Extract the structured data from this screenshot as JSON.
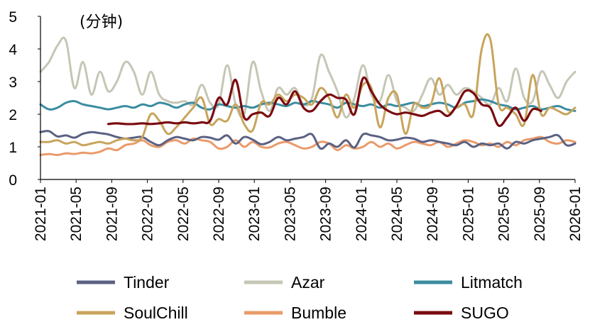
{
  "chart_data": {
    "type": "line",
    "unit_label": "(分钟)",
    "ylim": [
      0,
      5
    ],
    "yticks": [
      "0",
      "1",
      "2",
      "3",
      "4",
      "5"
    ],
    "x_tick_labels": [
      "2021-01",
      "2021-05",
      "2021-09",
      "2022-01",
      "2022-05",
      "2022-09",
      "2023-01",
      "2023-05",
      "2023-09",
      "2024-01",
      "2024-05",
      "2024-09",
      "2025-01",
      "2025-05",
      "2025-09",
      "2026-01"
    ],
    "x_start": "2021-01",
    "x_end": "2026-01",
    "legend_position": "bottom",
    "series": [
      {
        "name": "Tinder",
        "color": "#5b6183",
        "start": 0,
        "values": [
          1.45,
          1.48,
          1.32,
          1.35,
          1.28,
          1.4,
          1.45,
          1.42,
          1.38,
          1.3,
          1.25,
          1.28,
          1.3,
          1.15,
          1.05,
          1.2,
          1.3,
          1.25,
          1.2,
          1.3,
          1.28,
          1.22,
          1.35,
          1.1,
          1.3,
          1.22,
          1.08,
          1.15,
          1.3,
          1.2,
          1.25,
          1.3,
          1.38,
          0.95,
          1.1,
          1.0,
          1.2,
          0.98,
          1.38,
          1.35,
          1.3,
          1.2,
          1.22,
          1.28,
          1.25,
          1.15,
          1.2,
          1.15,
          1.1,
          1.05,
          1.15,
          1.0,
          1.1,
          1.05,
          1.1,
          0.95,
          1.15,
          1.1,
          1.2,
          1.25,
          1.3,
          1.35,
          1.05,
          1.1
        ]
      },
      {
        "name": "Azar",
        "color": "#c5c6b4",
        "start": 0,
        "values": [
          3.3,
          3.6,
          4.1,
          4.25,
          2.8,
          3.6,
          2.6,
          3.3,
          2.7,
          3.0,
          3.6,
          3.3,
          2.6,
          3.3,
          2.6,
          2.4,
          2.35,
          2.4,
          2.3,
          2.9,
          2.35,
          2.3,
          3.5,
          2.3,
          2.0,
          3.6,
          2.7,
          2.1,
          2.8,
          2.6,
          2.8,
          2.3,
          2.5,
          3.8,
          3.3,
          2.7,
          1.9,
          2.5,
          3.5,
          2.6,
          2.4,
          3.2,
          2.4,
          2.2,
          2.1,
          2.6,
          3.1,
          2.6,
          2.9,
          2.6,
          2.8,
          2.7,
          2.5,
          2.3,
          2.8,
          2.4,
          3.4,
          2.5,
          2.4,
          3.3,
          2.9,
          2.5,
          3.0,
          3.3
        ]
      },
      {
        "name": "Litmatch",
        "color": "#3a8ca0",
        "start": 0,
        "values": [
          2.3,
          2.15,
          2.2,
          2.35,
          2.4,
          2.3,
          2.25,
          2.2,
          2.15,
          2.2,
          2.25,
          2.2,
          2.3,
          2.25,
          2.35,
          2.3,
          2.2,
          2.3,
          2.35,
          2.2,
          2.15,
          2.3,
          2.25,
          2.2,
          2.25,
          2.2,
          2.3,
          2.35,
          2.3,
          2.25,
          2.35,
          2.3,
          2.4,
          2.35,
          2.3,
          2.2,
          2.35,
          2.3,
          2.25,
          2.3,
          2.2,
          2.3,
          2.25,
          2.3,
          2.35,
          2.25,
          2.3,
          2.35,
          2.3,
          2.2,
          2.35,
          2.4,
          2.45,
          2.4,
          2.3,
          2.25,
          2.15,
          2.2,
          2.25,
          2.15,
          2.2,
          2.25,
          2.15,
          2.1
        ]
      },
      {
        "name": "SoulChill",
        "color": "#c8a45c",
        "start": 0,
        "values": [
          1.15,
          1.15,
          1.2,
          1.1,
          1.15,
          1.05,
          1.1,
          1.15,
          1.1,
          1.2,
          1.25,
          1.2,
          1.3,
          2.0,
          1.8,
          1.4,
          1.6,
          1.9,
          2.2,
          2.5,
          1.7,
          1.85,
          1.8,
          2.3,
          1.7,
          1.5,
          2.35,
          2.3,
          2.6,
          2.4,
          2.6,
          2.5,
          2.3,
          2.8,
          2.5,
          1.9,
          2.6,
          2.2,
          2.9,
          2.8,
          1.6,
          2.5,
          2.6,
          1.4,
          2.3,
          2.2,
          2.3,
          3.1,
          2.1,
          2.2,
          2.3,
          2.0,
          4.0,
          4.3,
          2.3,
          2.2,
          2.0,
          1.7,
          3.2,
          2.0,
          2.2,
          2.1,
          2.0,
          2.2
        ]
      },
      {
        "name": "Bumble",
        "color": "#ea9a6a",
        "start": 0,
        "values": [
          0.75,
          0.78,
          0.75,
          0.8,
          0.78,
          0.82,
          0.8,
          0.85,
          0.95,
          0.9,
          1.05,
          1.1,
          1.2,
          1.05,
          1.0,
          1.15,
          1.2,
          1.1,
          1.25,
          1.2,
          1.15,
          0.95,
          1.0,
          1.2,
          1.0,
          1.15,
          1.0,
          0.98,
          1.1,
          1.15,
          1.05,
          0.95,
          1.0,
          1.15,
          1.1,
          0.9,
          1.05,
          0.95,
          1.0,
          1.15,
          1.0,
          1.1,
          0.95,
          1.05,
          1.15,
          1.1,
          1.05,
          1.15,
          1.0,
          1.1,
          1.2,
          1.15,
          1.05,
          1.1,
          1.0,
          1.15,
          1.05,
          1.2,
          1.25,
          1.3,
          1.15,
          1.1,
          1.2,
          1.15
        ]
      },
      {
        "name": "SUGO",
        "color": "#7a0b10",
        "start": 8,
        "values": [
          1.7,
          1.72,
          1.7,
          1.7,
          1.72,
          1.7,
          1.72,
          1.75,
          1.72,
          1.75,
          1.72,
          1.75,
          1.8,
          2.5,
          2.3,
          3.05,
          1.9,
          2.0,
          2.05,
          1.95,
          2.5,
          2.3,
          2.7,
          2.2,
          2.1,
          2.4,
          2.6,
          2.5,
          2.45,
          2.0,
          3.1,
          2.7,
          2.3,
          2.1,
          2.0,
          2.05,
          2.0,
          1.95,
          2.05,
          2.1,
          1.95,
          2.25,
          2.7,
          2.65,
          2.3,
          2.2,
          1.65,
          1.9,
          2.2,
          1.8,
          2.15,
          2.1
        ]
      }
    ]
  }
}
